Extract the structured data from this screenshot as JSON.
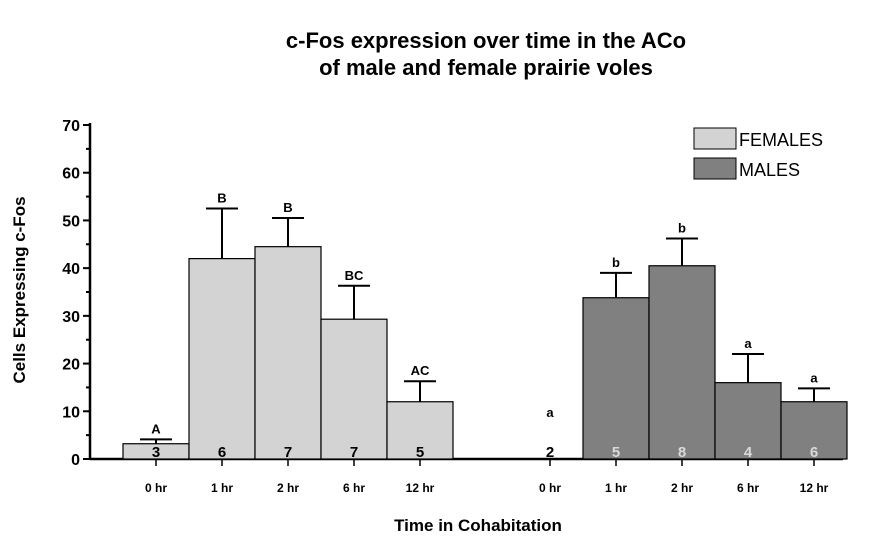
{
  "chart_data": {
    "type": "bar",
    "title_line1": "c-Fos expression over time in the ACo",
    "title_line2": "of male and female prairie voles",
    "xlabel": "Time in Cohabitation",
    "ylabel": "Cells Expressing c-Fos",
    "ylim": [
      0,
      70
    ],
    "yticks": [
      "0",
      "10",
      "20",
      "30",
      "40",
      "50",
      "60",
      "70"
    ],
    "legend_position": "top-right",
    "groups": [
      {
        "name": "FEMALES",
        "color": "#d3d3d3",
        "categories": [
          "0 hr",
          "1 hr",
          "2 hr",
          "6 hr",
          "12 hr"
        ],
        "values": [
          3.2,
          42,
          44.5,
          29.3,
          12
        ],
        "errors": [
          0.9,
          10.5,
          6,
          7,
          4.3
        ],
        "sig_letters": [
          "A",
          "B",
          "B",
          "BC",
          "AC"
        ],
        "n": [
          "3",
          "6",
          "7",
          "7",
          "5"
        ],
        "n_color": "#000000"
      },
      {
        "name": "MALES",
        "color": "#808080",
        "categories": [
          "0 hr",
          "1 hr",
          "2 hr",
          "6 hr",
          "12 hr"
        ],
        "values": [
          0,
          33.8,
          40.5,
          16,
          12
        ],
        "errors": [
          0,
          5.2,
          5.7,
          6,
          2.8
        ],
        "sig_letters": [
          "a",
          "b",
          "b",
          "a",
          "a"
        ],
        "n": [
          "2",
          "5",
          "8",
          "4",
          "6"
        ],
        "n_color": "#d9d9d9",
        "n_color_first": "#000000"
      }
    ]
  }
}
